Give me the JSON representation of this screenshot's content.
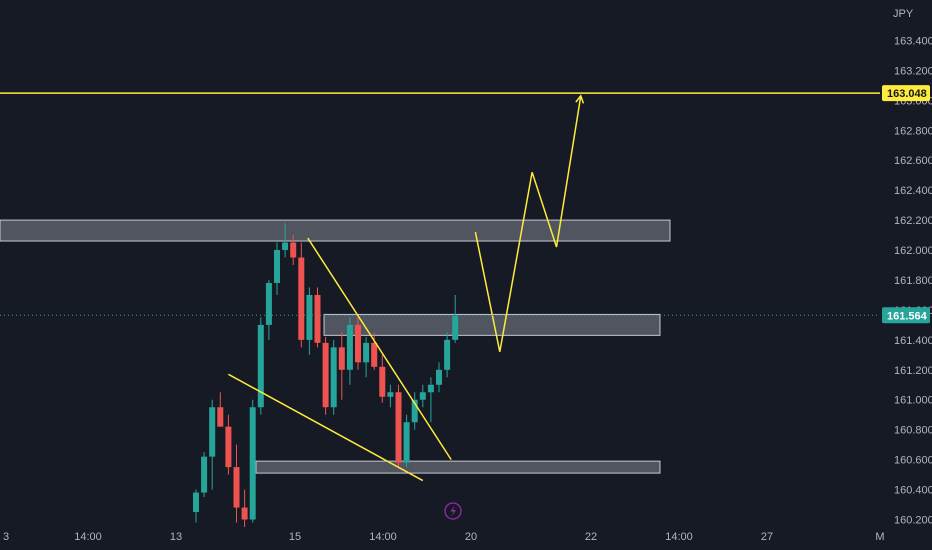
{
  "chart_data": {
    "type": "candlestick",
    "currency": "JPY",
    "y_ticks": [
      "163.400",
      "163.200",
      "163.000",
      "162.800",
      "162.600",
      "162.400",
      "162.200",
      "162.000",
      "161.800",
      "161.600",
      "161.400",
      "161.200",
      "161.000",
      "160.800",
      "160.600",
      "160.400",
      "160.200"
    ],
    "ylim": [
      160.13,
      163.67
    ],
    "x_ticks": [
      "3",
      "14:00",
      "13",
      "15",
      "14:00",
      "20",
      "22",
      "14:00",
      "27",
      "M"
    ],
    "grid": false,
    "colors": {
      "up": "#26a69a",
      "down": "#ef5350",
      "annotation": "#ffeb3b",
      "zone_fill": "#d1d4dc",
      "background": "#161a25"
    },
    "candles": [
      {
        "o": 160.25,
        "h": 160.4,
        "l": 160.18,
        "c": 160.38
      },
      {
        "o": 160.38,
        "h": 160.65,
        "l": 160.35,
        "c": 160.62
      },
      {
        "o": 160.62,
        "h": 161.0,
        "l": 160.4,
        "c": 160.95
      },
      {
        "o": 160.95,
        "h": 161.05,
        "l": 160.85,
        "c": 160.82
      },
      {
        "o": 160.82,
        "h": 160.9,
        "l": 160.5,
        "c": 160.55
      },
      {
        "o": 160.55,
        "h": 160.7,
        "l": 160.18,
        "c": 160.28
      },
      {
        "o": 160.28,
        "h": 160.4,
        "l": 160.15,
        "c": 160.2
      },
      {
        "o": 160.2,
        "h": 161.0,
        "l": 160.18,
        "c": 160.95
      },
      {
        "o": 160.95,
        "h": 161.55,
        "l": 160.9,
        "c": 161.5
      },
      {
        "o": 161.5,
        "h": 161.8,
        "l": 161.4,
        "c": 161.78
      },
      {
        "o": 161.78,
        "h": 162.05,
        "l": 161.7,
        "c": 162.0
      },
      {
        "o": 162.0,
        "h": 162.18,
        "l": 161.95,
        "c": 162.05
      },
      {
        "o": 162.05,
        "h": 162.1,
        "l": 161.9,
        "c": 161.95
      },
      {
        "o": 161.95,
        "h": 162.05,
        "l": 161.35,
        "c": 161.4
      },
      {
        "o": 161.4,
        "h": 161.75,
        "l": 161.3,
        "c": 161.7
      },
      {
        "o": 161.7,
        "h": 161.75,
        "l": 161.35,
        "c": 161.38
      },
      {
        "o": 161.38,
        "h": 161.42,
        "l": 160.9,
        "c": 160.95
      },
      {
        "o": 160.95,
        "h": 161.4,
        "l": 160.9,
        "c": 161.35
      },
      {
        "o": 161.35,
        "h": 161.45,
        "l": 161.0,
        "c": 161.2
      },
      {
        "o": 161.2,
        "h": 161.55,
        "l": 161.1,
        "c": 161.5
      },
      {
        "o": 161.5,
        "h": 161.55,
        "l": 161.2,
        "c": 161.25
      },
      {
        "o": 161.25,
        "h": 161.42,
        "l": 161.15,
        "c": 161.38
      },
      {
        "o": 161.38,
        "h": 161.45,
        "l": 161.2,
        "c": 161.22
      },
      {
        "o": 161.22,
        "h": 161.3,
        "l": 160.98,
        "c": 161.02
      },
      {
        "o": 161.02,
        "h": 161.1,
        "l": 160.95,
        "c": 161.05
      },
      {
        "o": 161.05,
        "h": 161.1,
        "l": 160.55,
        "c": 160.58
      },
      {
        "o": 160.58,
        "h": 160.9,
        "l": 160.55,
        "c": 160.85
      },
      {
        "o": 160.85,
        "h": 161.05,
        "l": 160.8,
        "c": 161.0
      },
      {
        "o": 161.0,
        "h": 161.1,
        "l": 160.95,
        "c": 161.05
      },
      {
        "o": 161.05,
        "h": 161.15,
        "l": 160.85,
        "c": 161.1
      },
      {
        "o": 161.1,
        "h": 161.25,
        "l": 161.05,
        "c": 161.2
      },
      {
        "o": 161.2,
        "h": 161.45,
        "l": 161.15,
        "c": 161.4
      },
      {
        "o": 161.4,
        "h": 161.7,
        "l": 161.38,
        "c": 161.56
      }
    ],
    "current_price": "161.564",
    "target_price": "163.048",
    "target_level": 163.048,
    "zones": [
      {
        "top": 162.2,
        "bottom": 162.06
      },
      {
        "top": 161.57,
        "bottom": 161.43
      },
      {
        "top": 160.59,
        "bottom": 160.51
      }
    ],
    "trendlines": [
      {
        "from": {
          "i": 13.8,
          "p": 162.08
        },
        "to": {
          "i": 31.5,
          "p": 160.6
        }
      },
      {
        "from": {
          "i": 4,
          "p": 161.17
        },
        "to": {
          "i": 28,
          "p": 160.46
        }
      }
    ],
    "projection": [
      {
        "i": 34.5,
        "p": 162.12
      },
      {
        "i": 37.5,
        "p": 161.32
      },
      {
        "i": 41.5,
        "p": 162.52
      },
      {
        "i": 44.5,
        "p": 162.02
      },
      {
        "i": 47.5,
        "p": 163.03
      }
    ]
  }
}
